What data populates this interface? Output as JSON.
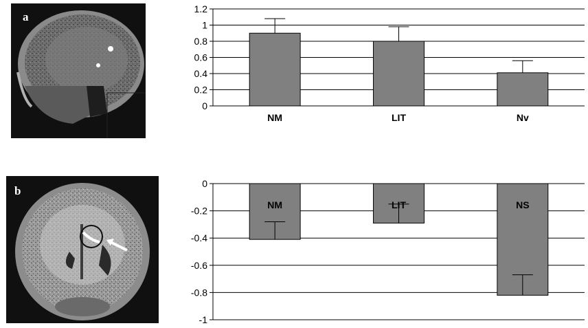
{
  "panels": [
    {
      "letter": "a",
      "image": "mri-sagittal-brain-slice"
    },
    {
      "letter": "b",
      "image": "mri-coronal-brain-slice"
    }
  ],
  "chart_data": [
    {
      "type": "bar",
      "categories": [
        "NM",
        "LIT",
        "Nv"
      ],
      "values": [
        0.9,
        0.8,
        0.41
      ],
      "error_top": [
        1.08,
        0.98,
        0.56
      ],
      "ylim": [
        0,
        1.2
      ],
      "yticks": [
        "0",
        "0.2",
        "0.4",
        "0.6",
        "0.8",
        "1",
        "1.2"
      ],
      "category_label_position": "below",
      "grid": true,
      "bar_color": "#808080"
    },
    {
      "type": "bar",
      "categories": [
        "NM",
        "LIT",
        "NS"
      ],
      "values": [
        -0.41,
        -0.29,
        -0.82
      ],
      "error_top": [
        -0.28,
        -0.15,
        -0.67
      ],
      "ylim": [
        -1,
        0
      ],
      "yticks": [
        "0",
        "-0.2",
        "-0.4",
        "-0.6",
        "-0.8",
        "-1"
      ],
      "category_label_position": "inside-top",
      "grid": true,
      "bar_color": "#808080"
    }
  ]
}
